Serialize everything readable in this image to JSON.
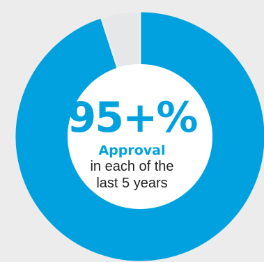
{
  "chart_data": {
    "type": "pie",
    "variant": "donut",
    "slices": [
      {
        "label": "Approval",
        "value": 95,
        "color": "#00a1de"
      },
      {
        "label": "",
        "value": 5,
        "color": "#e5e7e9"
      }
    ],
    "center": {
      "value": "95+%",
      "label": "Approval",
      "caption_line1": "in each of the",
      "caption_line2": "last 5 years"
    },
    "background_color": "#ececec",
    "hole_color": "#ffffff"
  }
}
